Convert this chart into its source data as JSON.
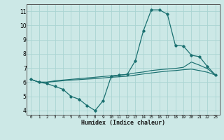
{
  "xlabel": "Humidex (Indice chaleur)",
  "bg_color": "#cce8e6",
  "line_color": "#1a7070",
  "grid_color": "#aad4d2",
  "xmin": -0.5,
  "xmax": 23.5,
  "ymin": 3.7,
  "ymax": 11.5,
  "x_ticks": [
    0,
    1,
    2,
    3,
    4,
    5,
    6,
    7,
    8,
    9,
    10,
    11,
    12,
    13,
    14,
    15,
    16,
    17,
    18,
    19,
    20,
    21,
    22,
    23
  ],
  "y_ticks": [
    4,
    5,
    6,
    7,
    8,
    9,
    10,
    11
  ],
  "line_main": [
    6.2,
    6.0,
    5.9,
    5.7,
    5.5,
    5.0,
    4.8,
    4.35,
    4.0,
    4.7,
    6.4,
    6.5,
    6.55,
    7.5,
    9.6,
    11.1,
    11.1,
    10.8,
    8.6,
    8.55,
    7.9,
    7.8,
    7.1,
    6.5
  ],
  "line_mid": [
    6.2,
    6.0,
    6.0,
    6.1,
    6.15,
    6.2,
    6.25,
    6.3,
    6.35,
    6.4,
    6.45,
    6.5,
    6.55,
    6.65,
    6.72,
    6.82,
    6.88,
    6.93,
    6.97,
    7.05,
    7.42,
    7.2,
    6.95,
    6.5
  ],
  "line_bot": [
    6.2,
    6.0,
    6.0,
    6.05,
    6.1,
    6.15,
    6.18,
    6.22,
    6.25,
    6.3,
    6.35,
    6.38,
    6.42,
    6.5,
    6.58,
    6.65,
    6.72,
    6.78,
    6.82,
    6.88,
    6.92,
    6.82,
    6.7,
    6.5
  ]
}
